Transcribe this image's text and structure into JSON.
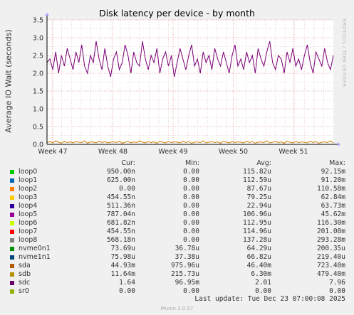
{
  "chart_data": {
    "type": "line",
    "title": "Disk latency per device - by month",
    "ylabel": "Average IO Wait (seconds)",
    "xlabel": "",
    "ylim": [
      0,
      3.5
    ],
    "yticks": [
      "0.0",
      "0.5",
      "1.0",
      "1.5",
      "2.0",
      "2.5",
      "3.0",
      "3.5"
    ],
    "xticks": [
      "Week 47",
      "Week 48",
      "Week 49",
      "Week 50",
      "Week 51"
    ],
    "grid": true,
    "watermark": "RRDTOOL / TOBI OETIKER",
    "series_note": "sdc dominant (~1.5-3.0 s); sdb small (~0-0.1 s); others ~0",
    "series": [
      {
        "name": "sdc",
        "color": "#7a0177",
        "values": [
          2.3,
          2.4,
          2.1,
          2.6,
          2.0,
          2.5,
          2.2,
          2.7,
          2.4,
          2.1,
          2.6,
          2.3,
          2.8,
          2.2,
          2.0,
          2.5,
          2.3,
          2.9,
          2.4,
          2.1,
          2.7,
          2.2,
          1.9,
          2.4,
          2.6,
          2.1,
          2.3,
          2.8,
          2.5,
          2.0,
          2.6,
          2.3,
          2.2,
          2.9,
          2.4,
          2.1,
          2.5,
          2.3,
          2.7,
          2.0,
          2.4,
          2.6,
          2.2,
          2.5,
          1.9,
          2.3,
          2.7,
          2.4,
          2.1,
          2.5,
          2.8,
          2.2,
          2.4,
          2.0,
          2.6,
          2.3,
          2.5,
          2.1,
          2.7,
          2.4,
          2.2,
          2.6,
          2.3,
          2.0,
          2.5,
          2.8,
          2.2,
          2.4,
          2.1,
          2.6,
          2.3,
          2.5,
          2.0,
          2.7,
          2.4,
          2.2,
          2.6,
          2.9,
          2.3,
          2.1,
          2.5,
          2.4,
          2.0,
          2.6,
          2.3,
          2.7,
          2.2,
          2.4,
          2.1,
          2.5,
          2.8,
          2.3,
          2.0,
          2.6,
          2.4,
          2.2,
          2.7,
          2.3,
          2.1,
          2.5
        ]
      },
      {
        "name": "sdb",
        "color": "#cc7a00",
        "values": [
          0.05,
          0.08,
          0.04,
          0.1,
          0.06,
          0.03,
          0.09,
          0.05,
          0.07,
          0.04,
          0.08,
          0.06,
          0.05,
          0.1,
          0.03,
          0.07,
          0.06,
          0.04,
          0.09,
          0.05,
          0.08,
          0.04,
          0.06,
          0.07,
          0.05,
          0.09,
          0.03,
          0.06,
          0.08,
          0.04,
          0.07,
          0.05,
          0.1,
          0.06,
          0.04,
          0.08,
          0.05,
          0.07,
          0.03,
          0.09,
          0.06,
          0.04,
          0.08,
          0.05,
          0.07,
          0.06,
          0.04,
          0.09,
          0.05,
          0.08,
          0.03,
          0.06,
          0.07,
          0.05,
          0.1,
          0.04,
          0.06,
          0.08,
          0.05,
          0.07,
          0.03,
          0.09,
          0.06,
          0.04,
          0.08,
          0.05,
          0.07,
          0.06,
          0.04,
          0.09,
          0.05,
          0.08,
          0.03,
          0.06,
          0.07,
          0.05,
          0.1,
          0.04,
          0.06,
          0.08,
          0.05,
          0.07,
          0.03,
          0.09,
          0.06,
          0.04,
          0.08,
          0.05,
          0.07,
          0.06,
          0.04,
          0.09,
          0.05,
          0.08,
          0.03,
          0.06,
          0.07,
          0.05,
          0.1,
          0.04
        ]
      }
    ]
  },
  "legend": {
    "headers": {
      "cur": "Cur:",
      "min": "Min:",
      "avg": "Avg:",
      "max": "Max:"
    },
    "rows": [
      {
        "name": "loop0",
        "color": "#00cc00",
        "cur": "950.00n",
        "min": "0.00",
        "avg": "115.82u",
        "max": "92.15m"
      },
      {
        "name": "loop1",
        "color": "#0066b3",
        "cur": "625.00n",
        "min": "0.00",
        "avg": "112.59u",
        "max": "91.20m"
      },
      {
        "name": "loop2",
        "color": "#ff8000",
        "cur": "0.00",
        "min": "0.00",
        "avg": "87.67u",
        "max": "110.58m"
      },
      {
        "name": "loop3",
        "color": "#ffcc00",
        "cur": "454.55n",
        "min": "0.00",
        "avg": "79.25u",
        "max": "62.84m"
      },
      {
        "name": "loop4",
        "color": "#330099",
        "cur": "511.36n",
        "min": "0.00",
        "avg": "22.94u",
        "max": "63.73m"
      },
      {
        "name": "loop5",
        "color": "#990099",
        "cur": "787.04n",
        "min": "0.00",
        "avg": "106.96u",
        "max": "45.62m"
      },
      {
        "name": "loop6",
        "color": "#ccff00",
        "cur": "681.82n",
        "min": "0.00",
        "avg": "112.95u",
        "max": "116.30m"
      },
      {
        "name": "loop7",
        "color": "#ff0000",
        "cur": "454.55n",
        "min": "0.00",
        "avg": "114.96u",
        "max": "201.08m"
      },
      {
        "name": "loop8",
        "color": "#808080",
        "cur": "568.18n",
        "min": "0.00",
        "avg": "137.28u",
        "max": "293.28m"
      },
      {
        "name": "nvme0n1",
        "color": "#008f00",
        "cur": "73.69u",
        "min": "36.78u",
        "avg": "64.29u",
        "max": "200.35u"
      },
      {
        "name": "nvme1n1",
        "color": "#00487d",
        "cur": "75.98u",
        "min": "37.38u",
        "avg": "66.82u",
        "max": "219.40u"
      },
      {
        "name": "sda",
        "color": "#b35a00",
        "cur": "44.93m",
        "min": "975.96u",
        "avg": "46.40m",
        "max": "723.40m"
      },
      {
        "name": "sdb",
        "color": "#b38f00",
        "cur": "11.64m",
        "min": "215.73u",
        "avg": "6.30m",
        "max": "479.40m"
      },
      {
        "name": "sdc",
        "color": "#6b006b",
        "cur": "1.64",
        "min": "96.95m",
        "avg": "2.01",
        "max": "7.96"
      },
      {
        "name": "sr0",
        "color": "#8fb300",
        "cur": "0.00",
        "min": "0.00",
        "avg": "0.00",
        "max": "0.00"
      }
    ]
  },
  "last_update": "Last update: Tue Dec 23 07:00:08 2025",
  "footer": "Munin 2.0.57"
}
